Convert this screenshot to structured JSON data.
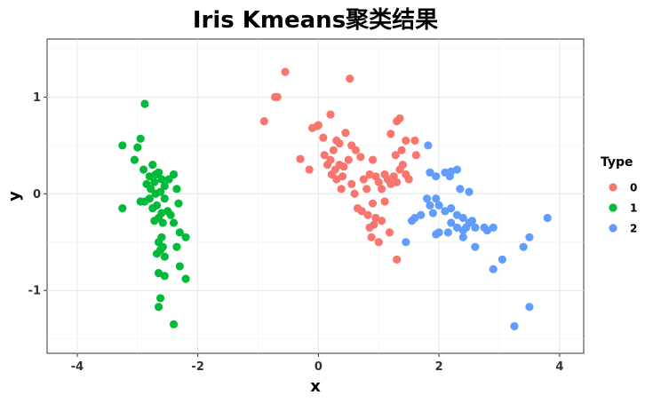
{
  "chart_data": {
    "type": "scatter",
    "title": "Iris Kmeans聚类结果",
    "xlabel": "x",
    "ylabel": "y",
    "xlim": [
      -4.5,
      4.4
    ],
    "ylim": [
      -1.65,
      1.6
    ],
    "x_ticks": [
      -4,
      -2,
      0,
      2,
      4
    ],
    "y_ticks": [
      -1,
      0,
      1
    ],
    "grid": true,
    "legend": {
      "title": "Type",
      "position": "right"
    },
    "series": [
      {
        "name": "0",
        "color": "#F8766D",
        "points": [
          [
            -0.55,
            1.26
          ],
          [
            -0.68,
            1.0
          ],
          [
            -0.72,
            1.0
          ],
          [
            -0.9,
            0.75
          ],
          [
            0.52,
            1.19
          ],
          [
            0.2,
            0.82
          ],
          [
            -0.02,
            0.7
          ],
          [
            -0.1,
            0.68
          ],
          [
            0.0,
            0.71
          ],
          [
            0.3,
            0.55
          ],
          [
            0.35,
            0.52
          ],
          [
            0.45,
            0.63
          ],
          [
            0.08,
            0.58
          ],
          [
            -0.3,
            0.36
          ],
          [
            -0.15,
            0.25
          ],
          [
            0.1,
            0.4
          ],
          [
            0.15,
            0.3
          ],
          [
            0.2,
            0.35
          ],
          [
            0.22,
            0.2
          ],
          [
            0.28,
            0.25
          ],
          [
            0.3,
            0.15
          ],
          [
            0.35,
            0.3
          ],
          [
            0.4,
            0.18
          ],
          [
            0.42,
            0.28
          ],
          [
            0.38,
            0.05
          ],
          [
            0.55,
            0.1
          ],
          [
            0.6,
            0.0
          ],
          [
            0.5,
            0.35
          ],
          [
            0.62,
            0.45
          ],
          [
            0.7,
            0.38
          ],
          [
            0.75,
            0.15
          ],
          [
            0.8,
            0.05
          ],
          [
            0.85,
            0.2
          ],
          [
            0.65,
            -0.15
          ],
          [
            0.72,
            -0.18
          ],
          [
            0.82,
            -0.22
          ],
          [
            0.9,
            -0.1
          ],
          [
            0.95,
            0.18
          ],
          [
            1.0,
            0.12
          ],
          [
            1.05,
            0.05
          ],
          [
            1.1,
            0.2
          ],
          [
            1.15,
            0.15
          ],
          [
            1.2,
            0.1
          ],
          [
            1.25,
            0.18
          ],
          [
            1.3,
            0.12
          ],
          [
            1.35,
            0.25
          ],
          [
            1.4,
            0.3
          ],
          [
            1.45,
            0.2
          ],
          [
            1.5,
            0.15
          ],
          [
            1.38,
            0.45
          ],
          [
            1.45,
            0.55
          ],
          [
            1.3,
            0.75
          ],
          [
            1.35,
            0.78
          ],
          [
            1.2,
            0.62
          ],
          [
            1.6,
            0.55
          ],
          [
            1.28,
            0.4
          ],
          [
            1.1,
            -0.08
          ],
          [
            1.05,
            -0.28
          ],
          [
            0.95,
            -0.25
          ],
          [
            1.18,
            -0.4
          ],
          [
            0.88,
            -0.45
          ],
          [
            0.92,
            -0.32
          ],
          [
            1.0,
            -0.5
          ],
          [
            1.3,
            -0.68
          ],
          [
            0.55,
            0.5
          ],
          [
            0.9,
            0.35
          ],
          [
            1.62,
            0.4
          ],
          [
            0.25,
            0.45
          ],
          [
            0.85,
            -0.35
          ]
        ]
      },
      {
        "name": "1",
        "color": "#00BA38",
        "points": [
          [
            -2.88,
            0.93
          ],
          [
            -3.25,
            0.5
          ],
          [
            -2.95,
            0.57
          ],
          [
            -3.0,
            0.48
          ],
          [
            -3.05,
            0.35
          ],
          [
            -2.9,
            0.25
          ],
          [
            -2.75,
            0.3
          ],
          [
            -2.7,
            0.2
          ],
          [
            -2.8,
            0.18
          ],
          [
            -2.85,
            0.1
          ],
          [
            -2.72,
            0.12
          ],
          [
            -2.65,
            0.22
          ],
          [
            -2.6,
            0.15
          ],
          [
            -2.55,
            0.08
          ],
          [
            -2.48,
            0.15
          ],
          [
            -2.4,
            0.2
          ],
          [
            -2.35,
            0.05
          ],
          [
            -2.7,
            0.0
          ],
          [
            -2.62,
            0.02
          ],
          [
            -2.55,
            -0.05
          ],
          [
            -2.8,
            -0.05
          ],
          [
            -2.88,
            -0.08
          ],
          [
            -2.75,
            -0.15
          ],
          [
            -2.68,
            -0.12
          ],
          [
            -2.6,
            -0.2
          ],
          [
            -2.65,
            -0.25
          ],
          [
            -2.72,
            -0.28
          ],
          [
            -2.58,
            -0.3
          ],
          [
            -2.5,
            -0.18
          ],
          [
            -2.45,
            -0.22
          ],
          [
            -2.4,
            -0.3
          ],
          [
            -2.32,
            -0.1
          ],
          [
            -2.3,
            -0.4
          ],
          [
            -2.2,
            -0.45
          ],
          [
            -2.35,
            -0.55
          ],
          [
            -2.6,
            -0.45
          ],
          [
            -2.65,
            -0.5
          ],
          [
            -2.58,
            -0.55
          ],
          [
            -2.62,
            -0.58
          ],
          [
            -2.55,
            -0.65
          ],
          [
            -2.68,
            -0.62
          ],
          [
            -2.55,
            -0.85
          ],
          [
            -2.65,
            -0.82
          ],
          [
            -2.3,
            -0.75
          ],
          [
            -2.2,
            -0.88
          ],
          [
            -2.62,
            -1.08
          ],
          [
            -2.65,
            -1.17
          ],
          [
            -2.4,
            -1.35
          ],
          [
            -3.25,
            -0.15
          ],
          [
            -2.95,
            -0.08
          ],
          [
            -2.78,
            0.05
          ]
        ]
      },
      {
        "name": "2",
        "color": "#619CFF",
        "points": [
          [
            1.82,
            0.5
          ],
          [
            1.85,
            0.22
          ],
          [
            1.95,
            0.18
          ],
          [
            2.1,
            0.22
          ],
          [
            2.18,
            0.18
          ],
          [
            2.2,
            0.23
          ],
          [
            2.3,
            0.25
          ],
          [
            2.35,
            0.05
          ],
          [
            2.5,
            0.02
          ],
          [
            1.8,
            -0.05
          ],
          [
            1.95,
            -0.05
          ],
          [
            2.0,
            -0.12
          ],
          [
            1.85,
            -0.12
          ],
          [
            1.9,
            -0.2
          ],
          [
            1.6,
            -0.25
          ],
          [
            1.7,
            -0.22
          ],
          [
            1.55,
            -0.28
          ],
          [
            2.1,
            -0.18
          ],
          [
            2.2,
            -0.15
          ],
          [
            2.3,
            -0.22
          ],
          [
            2.4,
            -0.25
          ],
          [
            2.5,
            -0.3
          ],
          [
            2.55,
            -0.28
          ],
          [
            2.2,
            -0.3
          ],
          [
            2.3,
            -0.35
          ],
          [
            2.4,
            -0.38
          ],
          [
            2.45,
            -0.35
          ],
          [
            2.0,
            -0.4
          ],
          [
            1.95,
            -0.42
          ],
          [
            2.15,
            -0.4
          ],
          [
            2.4,
            -0.45
          ],
          [
            2.6,
            -0.35
          ],
          [
            2.8,
            -0.38
          ],
          [
            2.9,
            -0.35
          ],
          [
            3.8,
            -0.25
          ],
          [
            3.5,
            -0.45
          ],
          [
            3.4,
            -0.55
          ],
          [
            2.6,
            -0.55
          ],
          [
            1.45,
            -0.5
          ],
          [
            3.05,
            -0.68
          ],
          [
            2.9,
            -0.78
          ],
          [
            3.5,
            -1.17
          ],
          [
            3.25,
            -1.37
          ],
          [
            2.75,
            -0.35
          ]
        ]
      }
    ]
  }
}
